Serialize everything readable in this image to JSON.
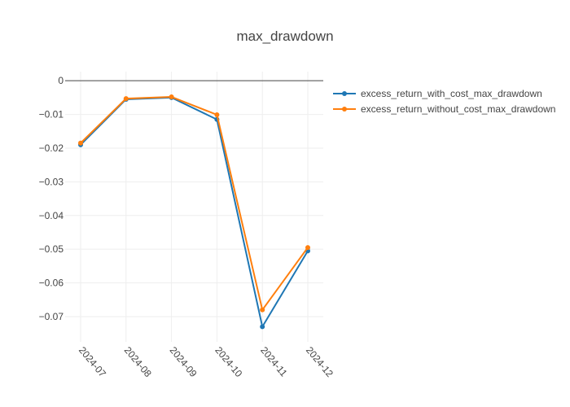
{
  "chart_data": {
    "type": "line",
    "title": "max_drawdown",
    "xlabel": "",
    "ylabel": "",
    "categories": [
      "2024-07",
      "2024-08",
      "2024-09",
      "2024-10",
      "2024-11",
      "2024-12"
    ],
    "y_ticks": [
      "0",
      "−0.01",
      "−0.02",
      "−0.03",
      "−0.04",
      "−0.05",
      "−0.06",
      "−0.07"
    ],
    "y_tick_values": [
      0,
      -0.01,
      -0.02,
      -0.03,
      -0.04,
      -0.05,
      -0.06,
      -0.07
    ],
    "ylim": [
      -0.0775,
      0.0
    ],
    "grid": true,
    "legend_position": "top-right",
    "series": [
      {
        "name": "excess_return_with_cost_max_drawdown",
        "color": "#1f77b4",
        "values": [
          -0.019,
          -0.0055,
          -0.005,
          -0.0115,
          -0.073,
          -0.0505
        ]
      },
      {
        "name": "excess_return_without_cost_max_drawdown",
        "color": "#ff7f0e",
        "values": [
          -0.0185,
          -0.0053,
          -0.0048,
          -0.0101,
          -0.068,
          -0.0495
        ]
      }
    ]
  }
}
